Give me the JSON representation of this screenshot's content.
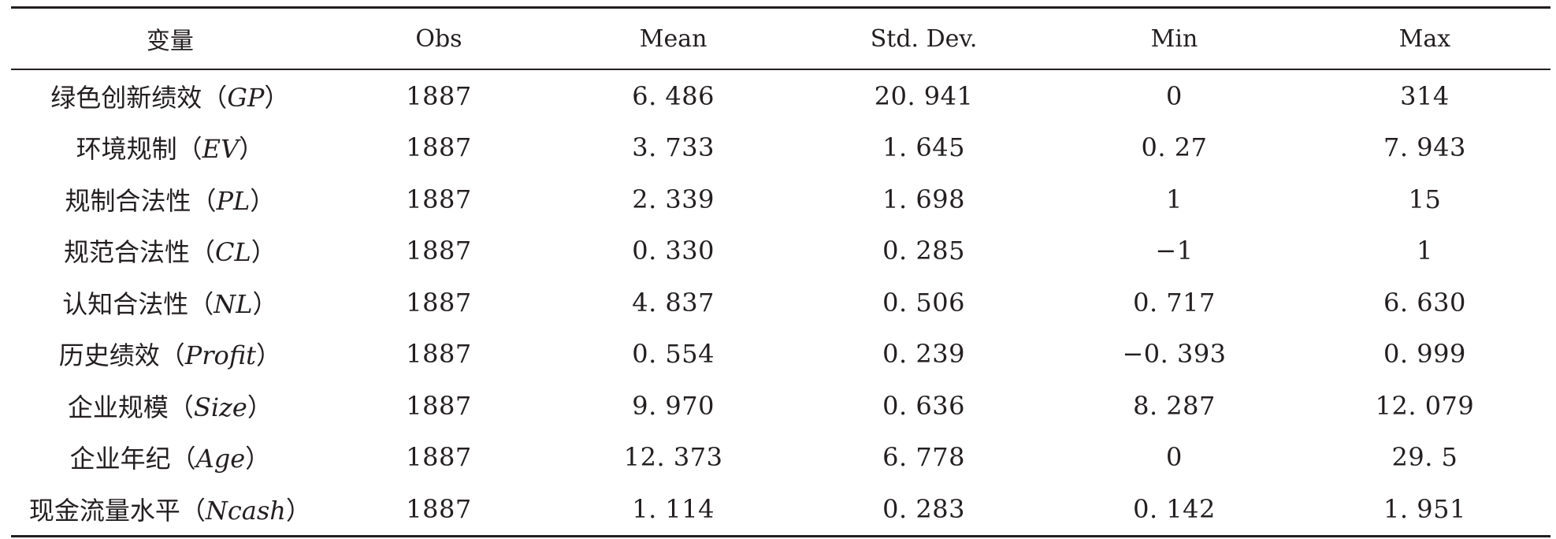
{
  "table": {
    "headers": [
      "变量",
      "Obs",
      "Mean",
      "Std. Dev.",
      "Min",
      "Max"
    ],
    "rows": [
      {
        "name": "绿色创新绩效",
        "abbr": "GP",
        "obs": "1887",
        "mean": "6. 486",
        "sd": "20. 941",
        "min": "0",
        "max": "314"
      },
      {
        "name": "环境规制",
        "abbr": "EV",
        "obs": "1887",
        "mean": "3. 733",
        "sd": "1. 645",
        "min": "0. 27",
        "max": "7. 943"
      },
      {
        "name": "规制合法性",
        "abbr": "PL",
        "obs": "1887",
        "mean": "2. 339",
        "sd": "1. 698",
        "min": "1",
        "max": "15"
      },
      {
        "name": "规范合法性",
        "abbr": "CL",
        "obs": "1887",
        "mean": "0. 330",
        "sd": "0. 285",
        "min": "−1",
        "max": "1"
      },
      {
        "name": "认知合法性",
        "abbr": "NL",
        "obs": "1887",
        "mean": "4. 837",
        "sd": "0. 506",
        "min": "0. 717",
        "max": "6. 630"
      },
      {
        "name": "历史绩效",
        "abbr": "Profit",
        "obs": "1887",
        "mean": "0. 554",
        "sd": "0. 239",
        "min": "−0. 393",
        "max": "0. 999"
      },
      {
        "name": "企业规模",
        "abbr": "Size",
        "obs": "1887",
        "mean": "9. 970",
        "sd": "0. 636",
        "min": "8. 287",
        "max": "12. 079"
      },
      {
        "name": "企业年纪",
        "abbr": "Age",
        "obs": "1887",
        "mean": "12. 373",
        "sd": "6. 778",
        "min": "0",
        "max": "29. 5"
      },
      {
        "name": "现金流量水平",
        "abbr": "Ncash",
        "obs": "1887",
        "mean": "1. 114",
        "sd": "0. 283",
        "min": "0. 142",
        "max": "1. 951"
      }
    ]
  }
}
